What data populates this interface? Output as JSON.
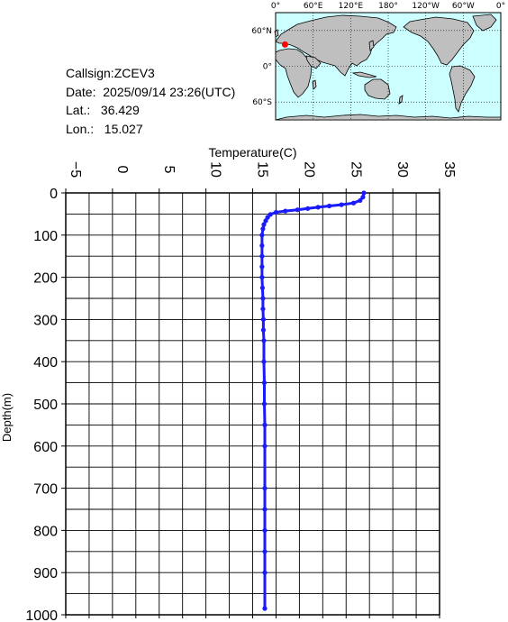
{
  "info": {
    "callsign": "Callsign:ZCEV3",
    "date": "Date:  2025/09/14 23:26(UTC)",
    "lat": "Lat.:   36.429",
    "lon": "Lon.:   15.027"
  },
  "map": {
    "lon_labels": [
      "0°",
      "60°E",
      "120°E",
      "180°",
      "120°W",
      "60°W",
      "0°"
    ],
    "lat_labels": [
      "60°N",
      "0°",
      "60°S"
    ],
    "ocean_color": "#ccffff",
    "land_color": "#bfbfbf",
    "marker": {
      "lat": 36.429,
      "lon": 15.027,
      "color": "#ff0000"
    }
  },
  "chart_data": {
    "type": "scatter",
    "xlabel": "Temperature(C)",
    "ylabel": "Depth(m)",
    "xlim": [
      -5,
      35
    ],
    "ylim": [
      0,
      1000
    ],
    "y_inverted": true,
    "x_ticks": [
      -5,
      0,
      5,
      10,
      15,
      20,
      25,
      30,
      35
    ],
    "y_ticks": [
      0,
      100,
      200,
      300,
      400,
      500,
      600,
      700,
      800,
      900,
      1000
    ],
    "grid": true,
    "line_color": "#1a1aff",
    "series": [
      {
        "temperature": [
          26.9,
          26.8,
          26.5,
          25.8,
          24.5,
          23.2,
          22.0,
          20.9,
          19.8,
          18.5,
          17.5,
          16.9,
          16.6,
          16.4,
          16.2,
          16.1,
          16.0,
          16.0,
          16.0,
          16.0,
          16.0,
          16.05,
          16.1,
          16.1,
          16.15,
          16.15,
          16.2,
          16.2,
          16.25,
          16.25,
          16.3,
          16.3,
          16.3,
          16.3,
          16.3,
          16.3,
          16.3,
          16.3
        ],
        "depth": [
          0,
          10,
          18,
          24,
          28,
          31,
          34,
          37,
          40,
          43,
          46,
          51,
          58,
          66,
          75,
          85,
          100,
          125,
          150,
          175,
          200,
          225,
          250,
          275,
          300,
          325,
          350,
          400,
          450,
          500,
          550,
          600,
          700,
          750,
          800,
          850,
          900,
          985
        ]
      }
    ]
  }
}
